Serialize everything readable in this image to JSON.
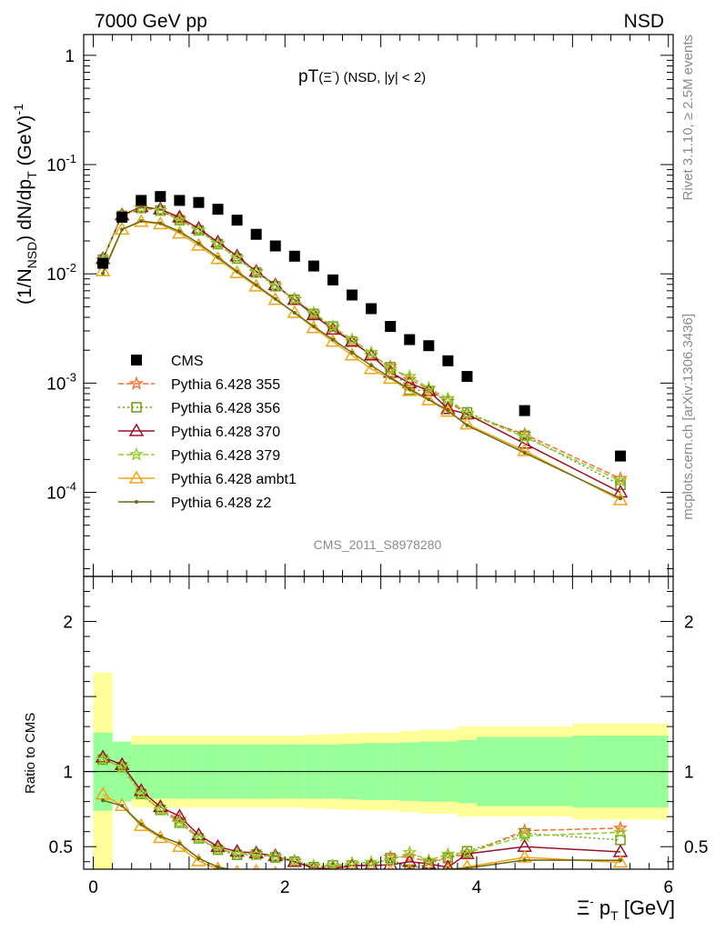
{
  "header": {
    "left": "7000 GeV pp",
    "right": "NSD"
  },
  "side_labels": {
    "rivet": "Rivet 3.1.10, ≥ 2.5M events",
    "mcplots": "mcplots.cern.ch [arXiv:1306.3436]"
  },
  "watermark": "CMS_2011_S8978280",
  "chart_data": {
    "type": "scatter",
    "title": "pT(Ξ⁻) (NSD, |y| < 2)",
    "title_main": "pT",
    "title_particle": "Ξ",
    "title_charge": "-",
    "title_cut": "(NSD, |y| < 2)",
    "xlabel": "Ξ⁻ p_T [GeV]",
    "xlabel_sym": "Ξ",
    "xlabel_sup": "-",
    "xlabel_p": "p",
    "xlabel_sub": "T",
    "xlabel_unit": "[GeV]",
    "ylabel": "(1/N_NSD) dN/dp_T (GeV)^-1",
    "ylabel_ratio": "Ratio to CMS",
    "xlim": [
      -0.1,
      6.05
    ],
    "ylim_main": [
      1.7e-05,
      1.55
    ],
    "ylim_ratio": [
      0.35,
      2.3
    ],
    "x_ticks": [
      {
        "value": 0,
        "label": "0"
      },
      {
        "value": 2,
        "label": "2"
      },
      {
        "value": 4,
        "label": "4"
      },
      {
        "value": 6,
        "label": "6"
      }
    ],
    "y_ticks_main": [
      {
        "value": 1,
        "label": "1",
        "exp": ""
      },
      {
        "value": 0.1,
        "label": "10",
        "exp": "-1"
      },
      {
        "value": 0.01,
        "label": "10",
        "exp": "-2"
      },
      {
        "value": 0.001,
        "label": "10",
        "exp": "-3"
      },
      {
        "value": 0.0001,
        "label": "10",
        "exp": "-4"
      }
    ],
    "y_ticks_ratio": [
      {
        "value": 0.5,
        "label": "0.5"
      },
      {
        "value": 1,
        "label": "1"
      },
      {
        "value": 2,
        "label": "2"
      }
    ],
    "data": {
      "name": "CMS",
      "x": [
        0.1,
        0.3,
        0.5,
        0.7,
        0.9,
        1.1,
        1.3,
        1.5,
        1.7,
        1.9,
        2.1,
        2.3,
        2.5,
        2.7,
        2.9,
        3.1,
        3.3,
        3.5,
        3.7,
        3.9,
        4.5,
        5.5
      ],
      "y": [
        0.0125,
        0.033,
        0.047,
        0.051,
        0.047,
        0.045,
        0.039,
        0.031,
        0.023,
        0.018,
        0.0145,
        0.0118,
        0.0088,
        0.0064,
        0.0048,
        0.0033,
        0.0025,
        0.0022,
        0.0016,
        0.00115,
        0.00056,
        0.000215
      ]
    },
    "bands": {
      "x_edges": [
        0.0,
        0.2,
        0.4,
        0.6,
        0.8,
        1.0,
        1.2,
        1.4,
        1.6,
        1.8,
        2.0,
        2.2,
        2.4,
        2.6,
        2.8,
        3.0,
        3.2,
        3.4,
        3.6,
        3.8,
        4.0,
        5.0,
        6.0
      ],
      "inner": [
        0.26,
        0.2,
        0.18,
        0.18,
        0.18,
        0.18,
        0.18,
        0.18,
        0.18,
        0.18,
        0.18,
        0.18,
        0.18,
        0.185,
        0.19,
        0.19,
        0.195,
        0.2,
        0.2,
        0.21,
        0.23,
        0.24
      ],
      "outer": [
        0.66,
        0.2,
        0.24,
        0.24,
        0.24,
        0.24,
        0.24,
        0.24,
        0.24,
        0.24,
        0.24,
        0.245,
        0.25,
        0.255,
        0.26,
        0.26,
        0.27,
        0.28,
        0.28,
        0.3,
        0.3,
        0.32
      ]
    },
    "x_mc": [
      0.1,
      0.3,
      0.5,
      0.7,
      0.9,
      1.1,
      1.3,
      1.5,
      1.7,
      1.9,
      2.1,
      2.3,
      2.5,
      2.7,
      2.9,
      3.1,
      3.3,
      3.5,
      3.7,
      3.9,
      4.5,
      5.5
    ],
    "series": [
      {
        "name": "Pythia 6.428 355",
        "color": "#ff6a2a",
        "dash": "6,3",
        "marker": "star",
        "values": [
          0.0135,
          0.034,
          0.04,
          0.038,
          0.032,
          0.025,
          0.019,
          0.014,
          0.0105,
          0.0078,
          0.0058,
          0.0043,
          0.0032,
          0.0024,
          0.0018,
          0.00142,
          0.00108,
          0.00088,
          0.00068,
          0.00052,
          0.00034,
          0.000134
        ]
      },
      {
        "name": "Pythia 6.428 356",
        "color": "#6a9e1a",
        "dash": "2,3",
        "marker": "square",
        "values": [
          0.0135,
          0.034,
          0.04,
          0.038,
          0.031,
          0.025,
          0.0187,
          0.0138,
          0.0103,
          0.0077,
          0.0058,
          0.0043,
          0.0033,
          0.0024,
          0.0018,
          0.0014,
          0.00087,
          0.00085,
          0.00068,
          0.00054,
          0.00033,
          0.000117
        ]
      },
      {
        "name": "Pythia 6.428 370",
        "color": "#9c1128",
        "dash": "",
        "marker": "triangle",
        "values": [
          0.0137,
          0.0345,
          0.041,
          0.039,
          0.033,
          0.026,
          0.0195,
          0.0145,
          0.0105,
          0.0079,
          0.0058,
          0.0042,
          0.0031,
          0.0024,
          0.0018,
          0.00125,
          0.001,
          0.00085,
          0.00058,
          0.00052,
          0.00028,
          0.0001
        ]
      },
      {
        "name": "Pythia 6.428 379",
        "color": "#8ccf2a",
        "dash": "6,3",
        "marker": "star",
        "values": [
          0.0135,
          0.034,
          0.04,
          0.038,
          0.031,
          0.025,
          0.0188,
          0.014,
          0.0103,
          0.0078,
          0.0059,
          0.0044,
          0.0033,
          0.0025,
          0.0019,
          0.00135,
          0.00115,
          0.0009,
          0.00072,
          0.00053,
          0.00032,
          0.000128
        ]
      },
      {
        "name": "Pythia 6.428 ambt1",
        "color": "#f2a414",
        "dash": "",
        "marker": "triangle",
        "values": [
          0.0106,
          0.0255,
          0.03,
          0.0285,
          0.0235,
          0.0182,
          0.0137,
          0.0102,
          0.0077,
          0.0058,
          0.0044,
          0.0032,
          0.0024,
          0.0018,
          0.00135,
          0.0011,
          0.00085,
          0.0007,
          0.00055,
          0.00042,
          0.00024,
          8.5e-05
        ]
      },
      {
        "name": "Pythia 6.428 z2",
        "color": "#6b6a13",
        "dash": "",
        "marker": "dot",
        "values": [
          0.0101,
          0.0255,
          0.0305,
          0.029,
          0.0245,
          0.019,
          0.0142,
          0.0105,
          0.0079,
          0.0059,
          0.0044,
          0.0033,
          0.0025,
          0.0019,
          0.00145,
          0.00112,
          0.00088,
          0.00071,
          0.00056,
          0.00041,
          0.00023,
          8.8e-05
        ]
      }
    ],
    "legend_placement": "lower-left",
    "legend_data_label": "CMS"
  }
}
